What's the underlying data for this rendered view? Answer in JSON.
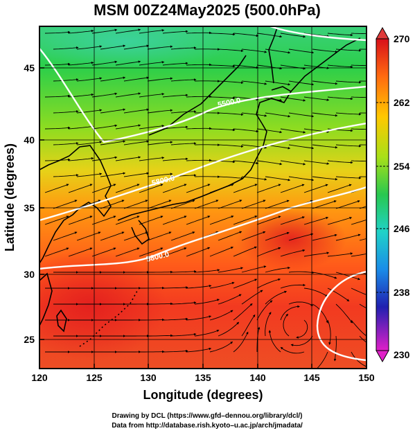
{
  "title": "MSM 00Z24May2025 (500.0hPa)",
  "xlabel": "Longitude (degrees)",
  "ylabel": "Latitude  (degrees)",
  "x_ticks": [
    "120",
    "125",
    "130",
    "135",
    "140",
    "145",
    "150"
  ],
  "y_ticks": [
    "25",
    "30",
    "35",
    "40",
    "45"
  ],
  "colorbar_ticks": [
    "270",
    "262",
    "254",
    "246",
    "238",
    "230"
  ],
  "contour_labels": [
    "5500.0",
    "5800.0",
    "5800.0"
  ],
  "credits": {
    "line1": "Drawing by DCL (https://www.gfd–dennou.org/library/dcl/)",
    "line2": "Data from http://database.rish.kyoto–u.ac.jp/arch/jmadata/"
  },
  "colors": {
    "warm": "#e8281e",
    "mid": "#ffb400",
    "cool": "#2cc84a",
    "cold": "#20c8e0",
    "colder": "#2040d0",
    "coldest": "#e020c8",
    "contour": "#ffffff"
  }
}
